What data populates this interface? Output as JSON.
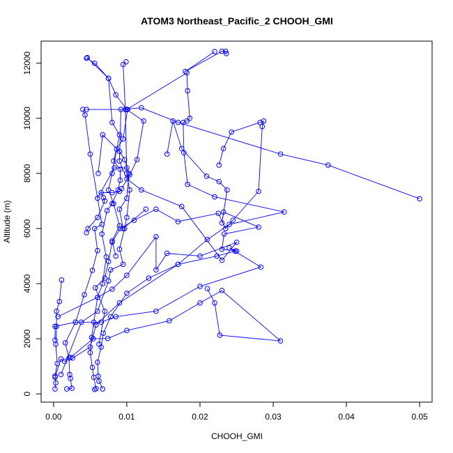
{
  "chart_data": {
    "type": "scatter",
    "title": "ATOM3 Northeast_Pacific_2 CHOOH_GMI",
    "xlabel": "CHOOH_GMI",
    "ylabel": "Altitude (m)",
    "xlim": [
      -0.0017,
      0.0517
    ],
    "ylim": [
      -300,
      12800
    ],
    "xticks": [
      0.0,
      0.01,
      0.02,
      0.03,
      0.04,
      0.05
    ],
    "xtick_labels": [
      "0.00",
      "0.01",
      "0.02",
      "0.03",
      "0.04",
      "0.05"
    ],
    "yticks": [
      0,
      2000,
      4000,
      6000,
      8000,
      10000,
      12000
    ],
    "ytick_labels": [
      "0",
      "2000",
      "4000",
      "6000",
      "8000",
      "10000",
      "12000"
    ],
    "grid": false,
    "line_color": "#0000ff",
    "marker": "open-circle",
    "series": [
      {
        "values": [
          [
            0.0002,
            180
          ],
          [
            0.0003,
            400
          ],
          [
            0.0002,
            650
          ],
          [
            0.0005,
            1100
          ],
          [
            0.0003,
            1800
          ],
          [
            0.0004,
            2450
          ],
          [
            0.0004,
            3000
          ],
          [
            0.0008,
            3350
          ],
          [
            0.0011,
            4130
          ]
        ]
      },
      {
        "values": [
          [
            0.0018,
            180
          ],
          [
            0.0025,
            200
          ],
          [
            0.0023,
            560
          ],
          [
            0.0022,
            700
          ],
          [
            0.0021,
            1300
          ],
          [
            0.0016,
            1850
          ],
          [
            0.003,
            2600
          ],
          [
            0.0042,
            3600
          ],
          [
            0.0053,
            4480
          ],
          [
            0.006,
            5200
          ],
          [
            0.0056,
            6000
          ],
          [
            0.0066,
            6150
          ],
          [
            0.005,
            8700
          ],
          [
            0.0043,
            10120
          ],
          [
            0.004,
            10320
          ]
        ]
      },
      {
        "values": [
          [
            0.0056,
            160
          ],
          [
            0.0058,
            190
          ],
          [
            0.0055,
            600
          ],
          [
            0.0053,
            960
          ],
          [
            0.005,
            1500
          ],
          [
            0.0052,
            2050
          ],
          [
            0.0055,
            2600
          ],
          [
            0.006,
            3500
          ],
          [
            0.0067,
            4000
          ],
          [
            0.0072,
            4970
          ],
          [
            0.0066,
            5800
          ],
          [
            0.0073,
            6650
          ],
          [
            0.008,
            6910
          ],
          [
            0.0088,
            7400
          ],
          [
            0.0091,
            7750
          ],
          [
            0.0091,
            8150
          ],
          [
            0.0082,
            8450
          ],
          [
            0.0086,
            8880
          ],
          [
            0.0095,
            9250
          ],
          [
            0.0101,
            10320
          ]
        ]
      },
      {
        "values": [
          [
            0.0067,
            180
          ],
          [
            0.0062,
            460
          ],
          [
            0.0061,
            640
          ],
          [
            0.006,
            1150
          ],
          [
            0.0065,
            1700
          ],
          [
            0.0068,
            2200
          ],
          [
            0.0078,
            2800
          ],
          [
            0.01,
            3650
          ],
          [
            0.013,
            4200
          ],
          [
            0.017,
            4700
          ],
          [
            0.0223,
            5000
          ],
          [
            0.0248,
            5180
          ]
        ]
      },
      {
        "values": [
          [
            0.0002,
            600
          ],
          [
            0.001,
            1270
          ],
          [
            0.0015,
            1180
          ],
          [
            0.0023,
            1320
          ],
          [
            0.0054,
            2000
          ],
          [
            0.0074,
            2010
          ],
          [
            0.01,
            2300
          ],
          [
            0.0158,
            2650
          ],
          [
            0.02,
            3300
          ],
          [
            0.023,
            3750
          ],
          [
            0.031,
            1920
          ],
          [
            0.0227,
            2130
          ],
          [
            0.022,
            3300
          ],
          [
            0.021,
            3820
          ]
        ]
      },
      {
        "values": [
          [
            0.0002,
            1950
          ],
          [
            0.0002,
            2450
          ],
          [
            0.003,
            2600
          ],
          [
            0.0065,
            2600
          ],
          [
            0.0085,
            2800
          ],
          [
            0.014,
            3000
          ],
          [
            0.02,
            3900
          ],
          [
            0.0283,
            4600
          ],
          [
            0.024,
            5300
          ],
          [
            0.025,
            5180
          ],
          [
            0.023,
            5250
          ],
          [
            0.0233,
            5800
          ],
          [
            0.028,
            6050
          ],
          [
            0.0232,
            6600
          ],
          [
            0.023,
            6200
          ],
          [
            0.0237,
            7400
          ],
          [
            0.0226,
            7700
          ],
          [
            0.0209,
            7900
          ],
          [
            0.0175,
            8900
          ],
          [
            0.0163,
            9900
          ],
          [
            0.0155,
            8700
          ]
        ]
      },
      {
        "values": [
          [
            0.0026,
            1300
          ],
          [
            0.005,
            1700
          ],
          [
            0.0058,
            2500
          ],
          [
            0.009,
            3300
          ],
          [
            0.017,
            4700
          ],
          [
            0.021,
            5600
          ],
          [
            0.024,
            6150
          ],
          [
            0.0315,
            6600
          ],
          [
            0.022,
            7150
          ],
          [
            0.0183,
            7600
          ],
          [
            0.0178,
            8750
          ],
          [
            0.0177,
            9850
          ],
          [
            0.0182,
            9900
          ],
          [
            0.0186,
            10000
          ],
          [
            0.0183,
            11000
          ],
          [
            0.0182,
            11650
          ],
          [
            0.01,
            10320
          ],
          [
            0.0045,
            10320
          ]
        ]
      },
      {
        "values": [
          [
            0.0062,
            1800
          ],
          [
            0.007,
            3000
          ],
          [
            0.0057,
            3850
          ],
          [
            0.007,
            4200
          ],
          [
            0.0075,
            4800
          ],
          [
            0.008,
            5500
          ],
          [
            0.0091,
            6000
          ],
          [
            0.011,
            6300
          ],
          [
            0.014,
            6700
          ],
          [
            0.017,
            6250
          ],
          [
            0.0225,
            6550
          ],
          [
            0.0235,
            6000
          ],
          [
            0.0245,
            6300
          ],
          [
            0.028,
            7350
          ],
          [
            0.0285,
            9700
          ],
          [
            0.0287,
            9900
          ],
          [
            0.0282,
            9850
          ],
          [
            0.0243,
            9500
          ],
          [
            0.0232,
            8900
          ],
          [
            0.0226,
            8300
          ]
        ]
      },
      {
        "values": [
          [
            0.001,
            700
          ],
          [
            0.0038,
            2600
          ],
          [
            0.006,
            3000
          ],
          [
            0.0075,
            4100
          ],
          [
            0.0078,
            4500
          ],
          [
            0.0095,
            4700
          ],
          [
            0.009,
            5250
          ],
          [
            0.0097,
            6000
          ],
          [
            0.01,
            6400
          ],
          [
            0.0104,
            7400
          ],
          [
            0.01,
            8000
          ],
          [
            0.0098,
            10320
          ],
          [
            0.0095,
            11950
          ],
          [
            0.0099,
            12050
          ]
        ]
      },
      {
        "values": [
          [
            0.0006,
            2800
          ],
          [
            0.006,
            3500
          ],
          [
            0.008,
            3800
          ],
          [
            0.01,
            4300
          ],
          [
            0.014,
            5700
          ],
          [
            0.014,
            4500
          ],
          [
            0.0155,
            5100
          ],
          [
            0.02,
            5000
          ],
          [
            0.025,
            5500
          ],
          [
            0.023,
            4850
          ],
          [
            0.0175,
            6800
          ],
          [
            0.012,
            7400
          ],
          [
            0.01,
            7800
          ],
          [
            0.009,
            8450
          ],
          [
            0.0092,
            10320
          ],
          [
            0.012,
            10380
          ],
          [
            0.017,
            9850
          ],
          [
            0.031,
            8700
          ],
          [
            0.0375,
            8300
          ],
          [
            0.05,
            7080
          ]
        ]
      },
      {
        "values": [
          [
            0.0045,
            5850
          ],
          [
            0.0047,
            6000
          ],
          [
            0.006,
            6400
          ],
          [
            0.007,
            7000
          ],
          [
            0.0068,
            7120
          ],
          [
            0.0065,
            7300
          ],
          [
            0.008,
            7300
          ],
          [
            0.009,
            7350
          ],
          [
            0.0093,
            7450
          ],
          [
            0.0104,
            7950
          ],
          [
            0.0114,
            8500
          ],
          [
            0.0123,
            9900
          ],
          [
            0.01,
            10320
          ],
          [
            0.0085,
            10850
          ],
          [
            0.0075,
            11450
          ],
          [
            0.0056,
            12000
          ],
          [
            0.0045,
            12180
          ]
        ]
      },
      {
        "values": [
          [
            0.0046,
            12200
          ],
          [
            0.0075,
            11450
          ],
          [
            0.008,
            9850
          ],
          [
            0.009,
            9400
          ],
          [
            0.008,
            8000
          ],
          [
            0.0075,
            7400
          ],
          [
            0.0082,
            6900
          ],
          [
            0.009,
            6100
          ],
          [
            0.008,
            5550
          ],
          [
            0.0085,
            5000
          ]
        ]
      },
      {
        "values": [
          [
            0.0061,
            8000
          ],
          [
            0.0067,
            9400
          ],
          [
            0.009,
            8800
          ],
          [
            0.0097,
            8500
          ],
          [
            0.0103,
            8000
          ],
          [
            0.01,
            7100
          ],
          [
            0.009,
            6700
          ],
          [
            0.0095,
            6000
          ],
          [
            0.0126,
            6700
          ]
        ]
      },
      {
        "values": [
          [
            0.006,
            7100
          ],
          [
            0.0083,
            8200
          ],
          [
            0.01,
            8200
          ]
        ]
      },
      {
        "values": [
          [
            0.022,
            12420
          ],
          [
            0.018,
            11700
          ],
          [
            0.023,
            12430
          ],
          [
            0.0235,
            12430
          ],
          [
            0.0236,
            12350
          ]
        ]
      }
    ]
  }
}
